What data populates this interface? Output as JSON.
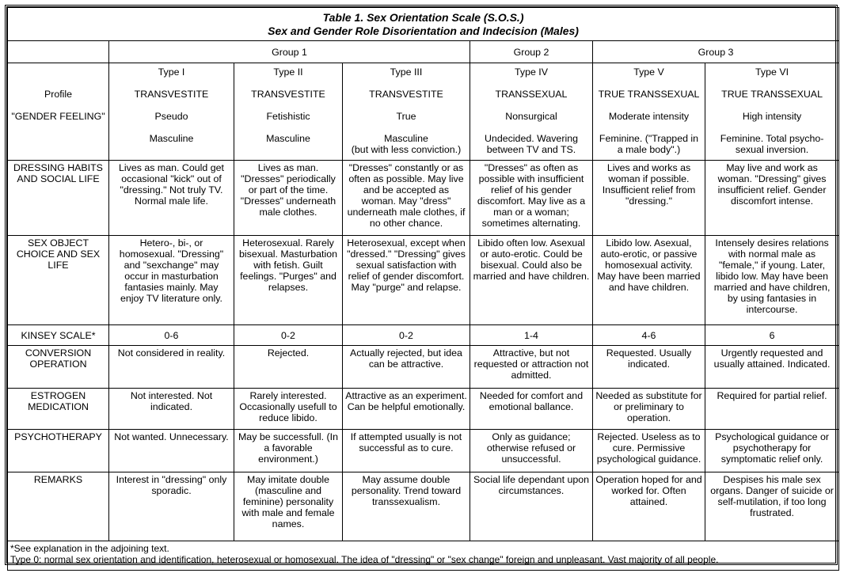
{
  "title": {
    "line1": "Table 1. Sex Orientation Scale (S.O.S.)",
    "line2": "Sex and Gender Role Disorientation and Indecision (Males)"
  },
  "groups": [
    "Group 1",
    "Group 2",
    "Group 3"
  ],
  "row_labels": {
    "profile": "Profile",
    "gender_feeling": "\"GENDER FEELING\""
  },
  "types": [
    {
      "type": "Type I",
      "profile": "TRANSVESTITE",
      "feeling1": "Pseudo",
      "feeling2": "Masculine",
      "feeling3": ""
    },
    {
      "type": "Type II",
      "profile": "TRANSVESTITE",
      "feeling1": "Fetishistic",
      "feeling2": "Masculine",
      "feeling3": ""
    },
    {
      "type": "Type III",
      "profile": "TRANSVESTITE",
      "feeling1": "True",
      "feeling2": "Masculine",
      "feeling3": "(but with less conviction.)"
    },
    {
      "type": "Type IV",
      "profile": "TRANSSEXUAL",
      "feeling1": "Nonsurgical",
      "feeling2": "Undecided. Wavering",
      "feeling3": "between TV and TS."
    },
    {
      "type": "Type V",
      "profile": "TRUE TRANSSEXUAL",
      "feeling1": "Moderate intensity",
      "feeling2": "Feminine. (\"Trapped in",
      "feeling3": "a male body\".)"
    },
    {
      "type": "Type VI",
      "profile": "TRUE TRANSSEXUAL",
      "feeling1": "High intensity",
      "feeling2": "Feminine. Total psycho-",
      "feeling3": "sexual inversion."
    }
  ],
  "rows": [
    {
      "label": "DRESSING HABITS AND SOCIAL LIFE",
      "cells": [
        "Lives as man. Could get occasional \"kick\" out of \"dressing.\" Not truly TV. Normal male life.",
        "Lives as man. \"Dresses\" periodically or part of the time. \"Dresses\" underneath male clothes.",
        "\"Dresses\" constantly or as often as possible. May live and be accepted as woman. May \"dress\" underneath male clothes, if no other chance.",
        "\"Dresses\" as often as possible with insufficient relief of his gender discomfort. May live as a man or a woman; sometimes alternating.",
        "Lives and works as woman if possible. Insufficient relief from \"dressing.\"",
        "May live and work as woman. \"Dressing\" gives insufficient relief. Gender discomfort intense."
      ]
    },
    {
      "label": "SEX OBJECT CHOICE AND SEX LIFE",
      "cells": [
        "Hetero-, bi-, or homosexual. \"Dressing\" and \"sexchange\" may occur in masturbation fantasies mainly. May enjoy TV literature only.",
        "Heterosexual. Rarely bisexual. Masturbation with fetish. Guilt feelings. \"Purges\" and relapses.",
        "Heterosexual, except when \"dressed.\" \"Dressing\" gives sexual satisfaction with relief of gender discomfort. May \"purge\" and relapse.",
        "Libido often low. Asexual or auto-erotic. Could be bisexual. Could also be married and have children.",
        "Libido low. Asexual, auto-erotic, or passive homosexual activity. May have been married and have children.",
        "Intensely desires relations with normal male as \"female,\" if young. Later, libido low. May have been married and have children, by using fantasies in intercourse."
      ]
    },
    {
      "label": "KINSEY SCALE*",
      "cells": [
        "0-6",
        "0-2",
        "0-2",
        "1-4",
        "4-6",
        "6"
      ]
    },
    {
      "label": "CONVERSION OPERATION",
      "cells": [
        "Not considered in reality.",
        "Rejected.",
        "Actually rejected, but idea can be attractive.",
        "Attractive, but not requested or attraction not admitted.",
        "Requested. Usually indicated.",
        "Urgently requested and usually attained. Indicated."
      ]
    },
    {
      "label": "ESTROGEN MEDICATION",
      "cells": [
        "Not interested. Not indicated.",
        "Rarely interested. Occasionally usefull to reduce libido.",
        "Attractive as an experiment. Can be helpful emotionally.",
        "Needed for comfort and emotional ballance.",
        "Needed as substitute for or preliminary to operation.",
        "Required for partial relief."
      ]
    },
    {
      "label": "PSYCHOTHERAPY",
      "cells": [
        "Not wanted. Unnecessary.",
        "May be successfull. (In a favorable environment.)",
        "If attempted usually is not successful as to cure.",
        "Only as guidance; otherwise refused or unsuccessful.",
        "Rejected. Useless as to cure. Permissive psychological guidance.",
        "Psychological guidance or psychotherapy for symptomatic relief only."
      ]
    },
    {
      "label": "REMARKS",
      "cells": [
        "Interest in \"dressing\" only sporadic.",
        "May imitate double (masculine and feminine) personality with male and female names.",
        "May assume double personality. Trend toward transsexualism.",
        "Social life dependant upon circumstances.",
        "Operation hoped for and worked for. Often attained.",
        "Despises his male sex organs. Danger of suicide or self-mutilation, if too long frustrated."
      ]
    }
  ],
  "footnotes": [
    "*See explanation in the adjoining text.",
    "Type 0: normal sex orientation and identification, heterosexual or homosexual. The idea of \"dressing\" or \"sex change\" foreign and unpleasant. Vast majority of all people."
  ]
}
